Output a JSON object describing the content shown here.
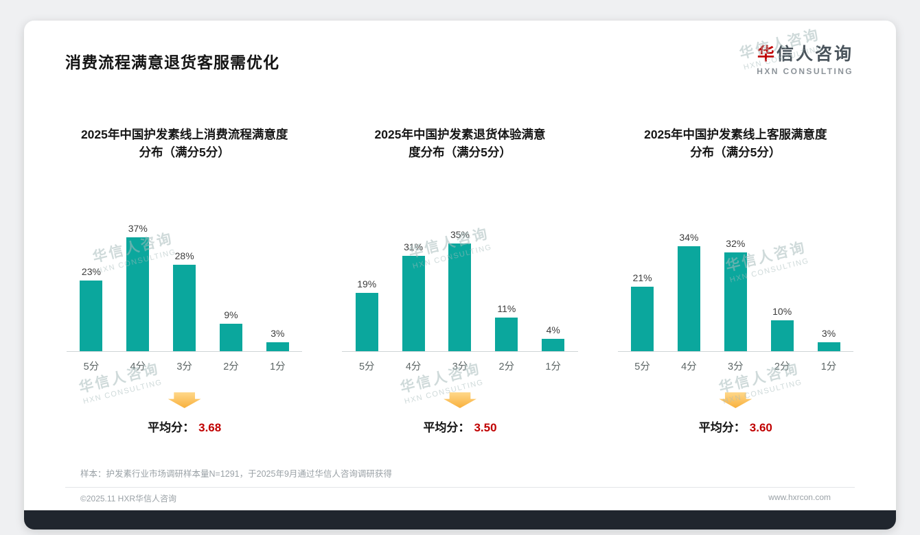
{
  "header": {
    "title": "消费流程满意退货客服需优化",
    "logo": {
      "brand_first": "华",
      "brand_rest": "信人咨询",
      "subtitle": "HXN CONSULTING"
    }
  },
  "watermark": {
    "line1": "华信人咨询",
    "line2": "HXN CONSULTING"
  },
  "colors": {
    "bar": "#0ba79d",
    "accent_red": "#c00000",
    "arrow_from": "#ffd88a",
    "arrow_to": "#f8b03c",
    "bottom_bar": "#20262e"
  },
  "chart_data": [
    {
      "type": "bar",
      "title": "2025年中国护发素线上消费流程满意度分布（满分5分）",
      "title_lines": [
        "2025年中国护发素线上消费流程满意度",
        "分布（满分5分）"
      ],
      "categories": [
        "5分",
        "4分",
        "3分",
        "2分",
        "1分"
      ],
      "values": [
        23,
        37,
        28,
        9,
        3
      ],
      "unit": "%",
      "ylim": [
        0,
        40
      ],
      "legend": "none",
      "grid": "off",
      "average_label": "平均分：",
      "average": "3.68"
    },
    {
      "type": "bar",
      "title": "2025年中国护发素退货体验满意度分布（满分5分）",
      "title_lines": [
        "2025年中国护发素退货体验满意",
        "度分布（满分5分）"
      ],
      "categories": [
        "5分",
        "4分",
        "3分",
        "2分",
        "1分"
      ],
      "values": [
        19,
        31,
        35,
        11,
        4
      ],
      "unit": "%",
      "ylim": [
        0,
        40
      ],
      "legend": "none",
      "grid": "off",
      "average_label": "平均分：",
      "average": "3.50"
    },
    {
      "type": "bar",
      "title": "2025年中国护发素线上客服满意度分布（满分5分）",
      "title_lines": [
        "2025年中国护发素线上客服满意度",
        "分布（满分5分）"
      ],
      "categories": [
        "5分",
        "4分",
        "3分",
        "2分",
        "1分"
      ],
      "values": [
        21,
        34,
        32,
        10,
        3
      ],
      "unit": "%",
      "ylim": [
        0,
        40
      ],
      "legend": "none",
      "grid": "off",
      "average_label": "平均分：",
      "average": "3.60"
    }
  ],
  "footer": {
    "note": "样本：护发素行业市场调研样本量N=1291，于2025年9月通过华信人咨询调研获得",
    "copyright": "©2025.11 HXR华信人咨询",
    "website": "www.hxrcon.com"
  }
}
